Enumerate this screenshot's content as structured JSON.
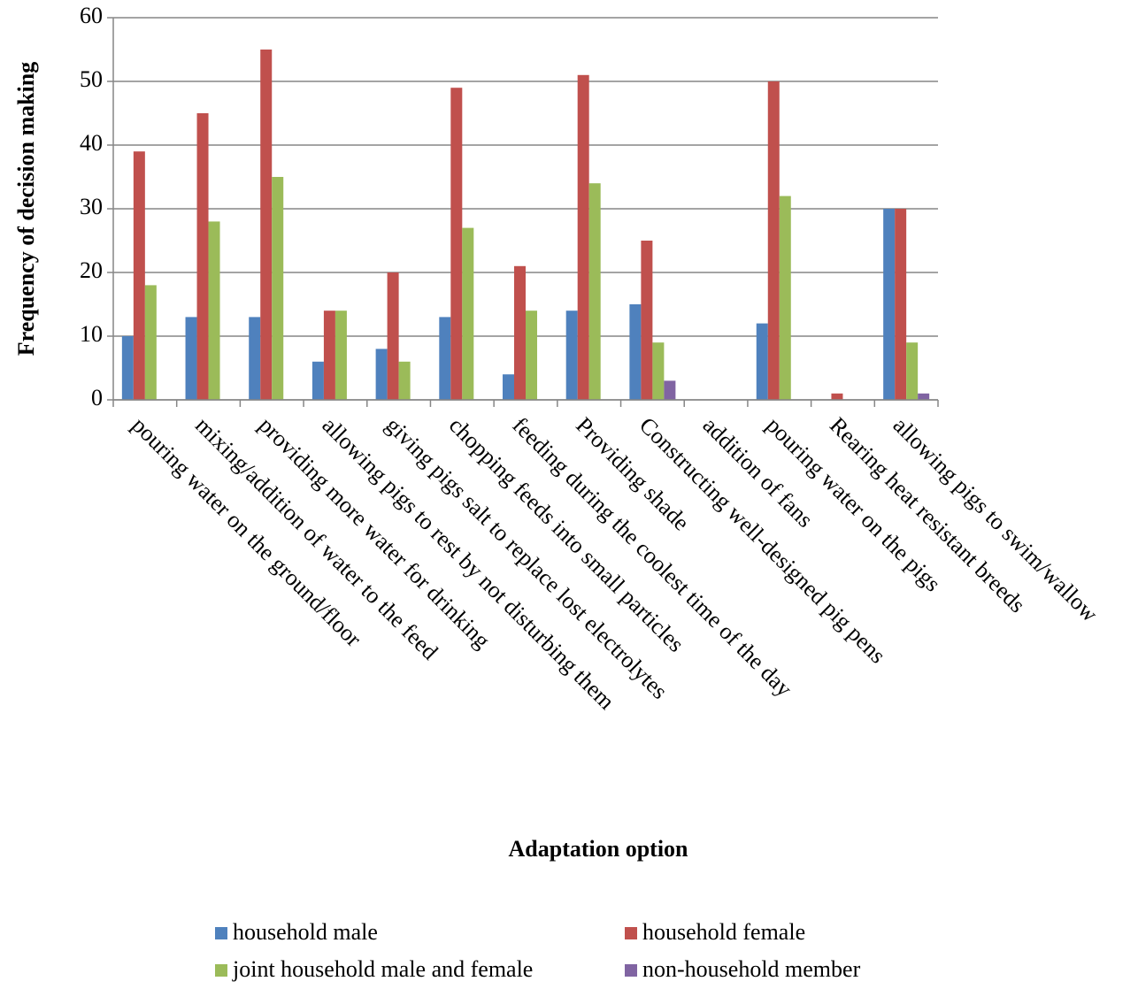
{
  "chart_data": {
    "type": "bar",
    "x_label": "Adaptation option",
    "y_label": "Frequency of decision making",
    "categories": [
      "pouring water on the ground/floor",
      "mixing/addition of water to the feed",
      "providing more water for drinking",
      "allowing pigs to rest by not disturbing them",
      "giving pigs salt to replace lost electrolytes",
      "chopping feeds into small particles",
      "feeding during the coolest time of the day",
      "Providing shade",
      "Constructing well-designed pig pens",
      "addition of fans",
      "pouring water on the pigs",
      "Rearing heat resistant breeds",
      "allowing pigs to swim/wallow"
    ],
    "series": [
      {
        "name": "household male",
        "color": "#4f81bd",
        "values": [
          10,
          13,
          13,
          6,
          8,
          13,
          4,
          14,
          15,
          0,
          12,
          0,
          30
        ]
      },
      {
        "name": "household female",
        "color": "#c0504d",
        "values": [
          39,
          45,
          55,
          14,
          20,
          49,
          21,
          51,
          25,
          0,
          50,
          1,
          30
        ]
      },
      {
        "name": "joint household male and female",
        "color": "#9bbb59",
        "values": [
          18,
          28,
          35,
          14,
          6,
          27,
          14,
          34,
          9,
          0,
          32,
          0,
          9
        ]
      },
      {
        "name": "non-household member",
        "color": "#8064a2",
        "values": [
          0,
          0,
          0,
          0,
          0,
          0,
          0,
          0,
          3,
          0,
          0,
          0,
          1
        ]
      }
    ],
    "ylim": [
      0,
      60
    ],
    "yticks": [
      0,
      10,
      20,
      30,
      40,
      50,
      60
    ],
    "grid": true,
    "legend": "bottom"
  }
}
